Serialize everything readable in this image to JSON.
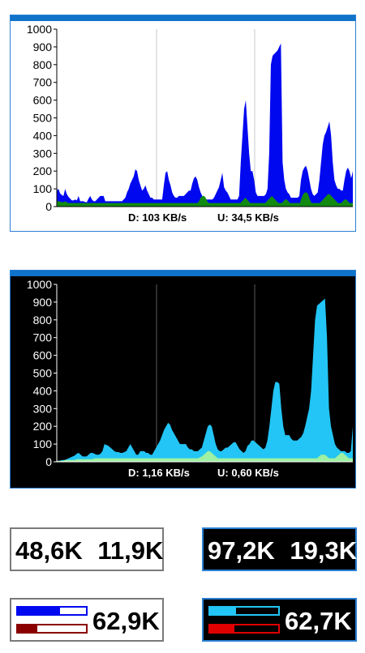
{
  "graphs": [
    {
      "id": "light",
      "theme": {
        "background": "#ffffff",
        "text": "#000000",
        "grid": "#c8c8c8",
        "axis": "#000000",
        "download_color": "#0008f0",
        "upload_color": "#128a12"
      },
      "y_ticks": [
        "1000",
        "900",
        "800",
        "700",
        "600",
        "500",
        "400",
        "300",
        "200",
        "100",
        "0"
      ],
      "download_label": "D: 103 KB/s",
      "upload_label": "U: 34,5 KB/s",
      "chart_data": {
        "type": "area",
        "ylim": [
          0,
          1000
        ],
        "grid": true,
        "series": [
          {
            "values": [
              90,
              100,
              75,
              65,
              60,
              100,
              70,
              55,
              45,
              35,
              35,
              40,
              35,
              60,
              30,
              30,
              30,
              25,
              25,
              45,
              60,
              40,
              30,
              30,
              40,
              50,
              60,
              60,
              60,
              30,
              30,
              30,
              30,
              30,
              30,
              30,
              30,
              30,
              30,
              30,
              40,
              50,
              80,
              100,
              130,
              150,
              170,
              210,
              200,
              150,
              120,
              90,
              100,
              120,
              90,
              70,
              50,
              50,
              40,
              40,
              40,
              40,
              40,
              40,
              120,
              190,
              200,
              150,
              120,
              80,
              60,
              50,
              50,
              60,
              60,
              60,
              60,
              70,
              80,
              90,
              90,
              130,
              160,
              170,
              150,
              110,
              80,
              60,
              40,
              40,
              40,
              40,
              40,
              40,
              50,
              70,
              90,
              110,
              150,
              190,
              110,
              90,
              80,
              60,
              40,
              40,
              40,
              40,
              40,
              60,
              250,
              400,
              550,
              600,
              450,
              300,
              200,
              200,
              150,
              80,
              60,
              60,
              60,
              60,
              60,
              70,
              100,
              300,
              800,
              850,
              860,
              870,
              880,
              900,
              920,
              250,
              150,
              100,
              80,
              70,
              50,
              50,
              50,
              50,
              50,
              60,
              150,
              200,
              220,
              230,
              200,
              150,
              100,
              70,
              60,
              70,
              80,
              150,
              250,
              350,
              400,
              420,
              450,
              480,
              400,
              250,
              150,
              120,
              100,
              100,
              90,
              90,
              150,
              200,
              220,
              200,
              160,
              200
            ]
          },
          {
            "values": [
              30,
              30,
              28,
              25,
              25,
              30,
              25,
              20,
              20,
              20,
              20,
              20,
              20,
              20,
              20,
              20,
              20,
              20,
              20,
              20,
              20,
              20,
              20,
              20,
              20,
              20,
              20,
              20,
              20,
              20,
              20,
              20,
              20,
              20,
              20,
              20,
              20,
              20,
              20,
              20,
              20,
              20,
              20,
              20,
              20,
              20,
              20,
              20,
              20,
              20,
              20,
              20,
              20,
              20,
              20,
              20,
              20,
              20,
              20,
              20,
              20,
              20,
              20,
              20,
              20,
              20,
              20,
              20,
              20,
              20,
              20,
              20,
              20,
              20,
              20,
              20,
              20,
              20,
              20,
              20,
              20,
              20,
              20,
              20,
              20,
              20,
              30,
              50,
              60,
              60,
              50,
              30,
              20,
              20,
              20,
              20,
              20,
              20,
              20,
              20,
              20,
              20,
              20,
              20,
              20,
              20,
              20,
              20,
              20,
              20,
              20,
              20,
              30,
              40,
              50,
              40,
              30,
              20,
              20,
              20,
              20,
              20,
              20,
              20,
              20,
              20,
              20,
              30,
              40,
              50,
              60,
              50,
              40,
              30,
              20,
              20,
              20,
              30,
              40,
              40,
              30,
              20,
              20,
              20,
              20,
              20,
              20,
              20,
              50,
              70,
              80,
              80,
              70,
              40,
              20,
              20,
              20,
              20,
              20,
              20,
              30,
              40,
              50,
              60,
              70,
              70,
              60,
              50,
              40,
              30,
              20,
              20,
              20,
              30,
              40,
              40,
              30,
              20,
              20,
              20
            ]
          }
        ]
      }
    },
    {
      "id": "dark",
      "theme": {
        "background": "#000000",
        "text": "#ffffff",
        "grid": "#5a5a5a",
        "axis": "#ffffff",
        "download_color": "#22c5f5",
        "upload_color": "#9ef0a2"
      },
      "y_ticks": [
        "1000",
        "900",
        "800",
        "700",
        "600",
        "500",
        "400",
        "300",
        "200",
        "100",
        "0"
      ],
      "download_label": "D: 1,16 KB/s",
      "upload_label": "U: 0,60 KB/s",
      "chart_data": {
        "type": "area",
        "ylim": [
          0,
          1000
        ],
        "grid": true,
        "series": [
          {
            "values": [
              5,
              5,
              8,
              10,
              10,
              15,
              20,
              25,
              30,
              35,
              45,
              50,
              40,
              30,
              30,
              30,
              40,
              50,
              50,
              45,
              40,
              40,
              45,
              60,
              100,
              95,
              90,
              80,
              70,
              60,
              55,
              55,
              50,
              50,
              55,
              60,
              80,
              100,
              80,
              60,
              40,
              40,
              60,
              60,
              60,
              50,
              50,
              40,
              40,
              60,
              80,
              100,
              120,
              150,
              180,
              200,
              220,
              210,
              180,
              160,
              140,
              120,
              100,
              100,
              100,
              100,
              80,
              70,
              70,
              60,
              60,
              60,
              70,
              80,
              120,
              160,
              200,
              210,
              200,
              150,
              100,
              70,
              60,
              60,
              70,
              80,
              80,
              90,
              100,
              110,
              110,
              90,
              70,
              60,
              50,
              60,
              90,
              100,
              120,
              120,
              110,
              100,
              90,
              80,
              70,
              80,
              120,
              200,
              300,
              400,
              450,
              450,
              440,
              300,
              200,
              150,
              150,
              150,
              130,
              120,
              120,
              120,
              130,
              140,
              160,
              200,
              250,
              300,
              400,
              600,
              800,
              880,
              890,
              900,
              910,
              920,
              700,
              300,
              200,
              150,
              100,
              80,
              70,
              60,
              60,
              60,
              50,
              50,
              60,
              200
            ]
          },
          {
            "values": [
              5,
              5,
              5,
              5,
              10,
              10,
              10,
              10,
              10,
              10,
              15,
              15,
              15,
              15,
              15,
              15,
              15,
              15,
              15,
              20,
              20,
              20,
              20,
              20,
              20,
              20,
              20,
              20,
              20,
              20,
              20,
              20,
              20,
              20,
              20,
              20,
              20,
              20,
              20,
              20,
              20,
              20,
              20,
              20,
              20,
              20,
              20,
              20,
              20,
              20,
              20,
              20,
              20,
              20,
              20,
              20,
              20,
              20,
              20,
              20,
              20,
              20,
              20,
              20,
              20,
              20,
              20,
              20,
              20,
              20,
              20,
              20,
              25,
              30,
              40,
              50,
              60,
              60,
              50,
              40,
              30,
              20,
              20,
              20,
              20,
              20,
              20,
              20,
              20,
              20,
              20,
              20,
              20,
              20,
              20,
              20,
              20,
              20,
              20,
              20,
              20,
              20,
              20,
              20,
              20,
              20,
              20,
              20,
              20,
              20,
              20,
              20,
              20,
              20,
              20,
              20,
              20,
              20,
              20,
              20,
              20,
              20,
              20,
              20,
              20,
              20,
              20,
              20,
              20,
              20,
              20,
              20,
              30,
              40,
              40,
              40,
              30,
              20,
              20,
              20,
              20,
              30,
              40,
              50,
              50,
              40,
              30,
              20,
              20,
              20
            ]
          }
        ]
      }
    }
  ],
  "counters": {
    "light_text": {
      "download": "48,6K",
      "upload": "11,9K"
    },
    "dark_text": {
      "download": "97,2K",
      "upload": "19,3K"
    },
    "light_bars": {
      "value": "62,9K",
      "download_level": 0.62,
      "upload_level": 0.28,
      "download_color": "#0008f0",
      "upload_color": "#8a0000"
    },
    "dark_bars": {
      "value": "62,7K",
      "download_level": 0.38,
      "upload_level": 0.36,
      "download_color": "#22c5f5",
      "upload_color": "#e00000"
    }
  }
}
